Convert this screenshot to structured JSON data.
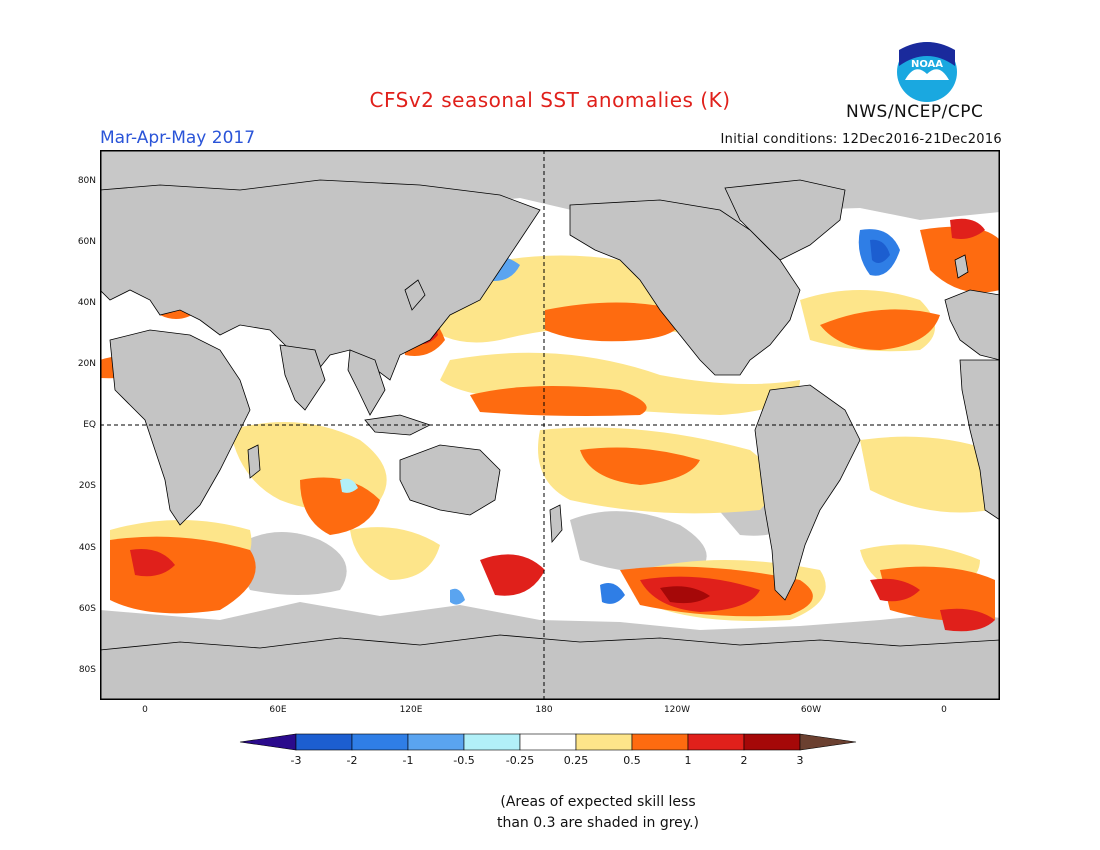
{
  "header": {
    "title": "CFSv2 seasonal SST anomalies (K)",
    "season": "Mar-Apr-May 2017",
    "initial_conditions": "Initial conditions: 12Dec2016-21Dec2016",
    "agency": "NWS/NCEP/CPC",
    "logo_text": "NOAA"
  },
  "axes": {
    "lat_labels": [
      "80N",
      "60N",
      "40N",
      "20N",
      "EQ",
      "20S",
      "40S",
      "60S",
      "80S"
    ],
    "lon_labels": [
      "0",
      "60E",
      "120E",
      "180",
      "120W",
      "60W",
      "0"
    ]
  },
  "colorbar": {
    "labels": [
      "-3",
      "-2",
      "-1",
      "-0.5",
      "-0.25",
      "0.25",
      "0.5",
      "1",
      "2",
      "3"
    ],
    "colors": [
      "#2a0a8c",
      "#1c5ed0",
      "#2f7ee6",
      "#5aa4f0",
      "#b2f0f8",
      "#ffffff",
      "#fde58a",
      "#fe6b10",
      "#e0201b",
      "#a50808",
      "#6b4030"
    ]
  },
  "map_colors": {
    "ocean_background": "#ffffff",
    "low_skill_grey": "#c8c8c8",
    "land": "#c4c4c4"
  },
  "note": {
    "line1": "(Areas of expected skill less",
    "line2": "than 0.3 are shaded in grey.)"
  }
}
